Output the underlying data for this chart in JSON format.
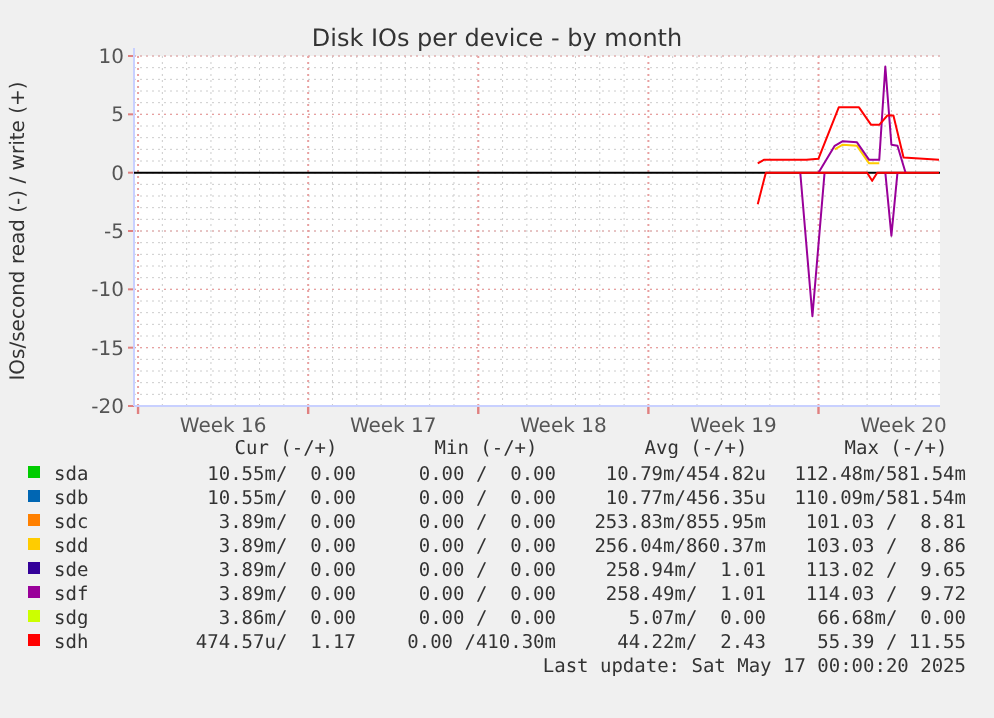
{
  "chart_data": {
    "type": "line",
    "title": "Disk IOs per device - by month",
    "ylabel": "IOs/second read (-) / write (+)",
    "xlim": [
      "2025-04-13T20:00",
      "2025-05-17T00:00"
    ],
    "ylim": [
      -20,
      10
    ],
    "xticks": [
      {
        "value": "2025-04-14",
        "label": null
      },
      {
        "value": "2025-04-17T12:00",
        "label": "Week 16"
      },
      {
        "value": "2025-04-21",
        "label": null
      },
      {
        "value": "2025-04-24T12:00",
        "label": "Week 17"
      },
      {
        "value": "2025-04-28",
        "label": null
      },
      {
        "value": "2025-05-01T12:00",
        "label": "Week 18"
      },
      {
        "value": "2025-05-05",
        "label": null
      },
      {
        "value": "2025-05-08T12:00",
        "label": "Week 19"
      },
      {
        "value": "2025-05-12",
        "label": null
      },
      {
        "value": "2025-05-15T12:00",
        "label": "Week 20"
      }
    ],
    "yticks": [
      -20,
      -15,
      -10,
      -5,
      0,
      5,
      10
    ],
    "grid": true,
    "legend": "bottom",
    "ref_lines": [
      {
        "axis": "y",
        "value": 0,
        "color": "#000000"
      }
    ],
    "series": [
      {
        "name": "sda",
        "color": "#00cc00"
      },
      {
        "name": "sdb",
        "color": "#0066b3"
      },
      {
        "name": "sdc",
        "color": "#ff8000"
      },
      {
        "name": "sdd",
        "color": "#ffcc00",
        "x": [
          "2025-05-12T16:00",
          "2025-05-13T00:00",
          "2025-05-13T14:00",
          "2025-05-14T02:00",
          "2025-05-14T12:00"
        ],
        "values": [
          2.0,
          2.4,
          2.3,
          0.8,
          0.8
        ]
      },
      {
        "name": "sde",
        "color": "#330099"
      },
      {
        "name": "sdf",
        "color": "#990099",
        "x": [
          "2025-05-12T00:00",
          "2025-05-12T16:00",
          "2025-05-13T00:00",
          "2025-05-13T14:00",
          "2025-05-14T02:00",
          "2025-05-14T12:00",
          "2025-05-14T18:00",
          "2025-05-15T00:00",
          "2025-05-15T06:00",
          "2025-05-15T14:00"
        ],
        "values": [
          0,
          2.3,
          2.7,
          2.6,
          1.1,
          1.1,
          9.1,
          2.4,
          2.3,
          0
        ]
      },
      {
        "color": "#990099",
        "x": [
          "2025-05-11T06:00",
          "2025-05-11T18:00",
          "2025-05-12T06:00",
          "2025-05-13T12:00",
          "2025-05-14T18:00",
          "2025-05-15T00:00",
          "2025-05-15T06:00"
        ],
        "values": [
          0,
          -12.3,
          0,
          null,
          0,
          -5.4,
          0
        ]
      },
      {
        "name": "sdg",
        "color": "#ccff00"
      },
      {
        "name": "sdh",
        "color": "#ff0000",
        "x": [
          "2025-05-09T12:00",
          "2025-05-09T18:00",
          "2025-05-11T12:00",
          "2025-05-12T00:00",
          "2025-05-12T20:00",
          "2025-05-13T16:00",
          "2025-05-14T04:00",
          "2025-05-14T12:00",
          "2025-05-14T20:00",
          "2025-05-15T02:00",
          "2025-05-15T12:00",
          "2025-05-16T23:00"
        ],
        "values": [
          0.8,
          1.1,
          1.1,
          1.2,
          5.6,
          5.6,
          4.1,
          4.1,
          4.9,
          4.9,
          1.3,
          1.1
        ]
      },
      {
        "color": "#ff0000",
        "x": [
          "2025-05-09T12:00",
          "2025-05-09T20:00",
          "2025-05-14T00:00",
          "2025-05-14T05:00",
          "2025-05-14T10:00",
          "2025-05-16T23:00"
        ],
        "values": [
          -2.7,
          0,
          0,
          -0.7,
          0,
          0
        ]
      }
    ],
    "annotations": [
      "Cur (-/+)",
      "Min (-/+)",
      "Avg (-/+)",
      "Max (-/+)",
      "10.55m/  0.00",
      "0.00 /  0.00",
      "10.79m/454.82u",
      "112.48m/581.54m",
      "10.55m/  0.00",
      "0.00 /  0.00",
      "10.77m/456.35u",
      "110.09m/581.54m",
      "3.89m/  0.00",
      "0.00 /  0.00",
      "253.83m/855.95m",
      "101.03 /  8.81",
      "3.89m/  0.00",
      "0.00 /  0.00",
      "256.04m/860.37m",
      "103.03 /  8.86",
      "3.89m/  0.00",
      "0.00 /  0.00",
      "258.94m/  1.01",
      "113.02 /  9.65",
      "3.89m/  0.00",
      "0.00 /  0.00",
      "258.49m/  1.01",
      "114.03 /  9.72",
      "3.86m/  0.00",
      "0.00 /  0.00",
      "5.07m/  0.00",
      "66.68m/  0.00",
      "474.57u/  1.17",
      "0.00 /410.30m",
      "44.22m/  2.43",
      "55.39 / 11.55",
      "Last update: Sat May 17 00:00:20 2025"
    ]
  }
}
